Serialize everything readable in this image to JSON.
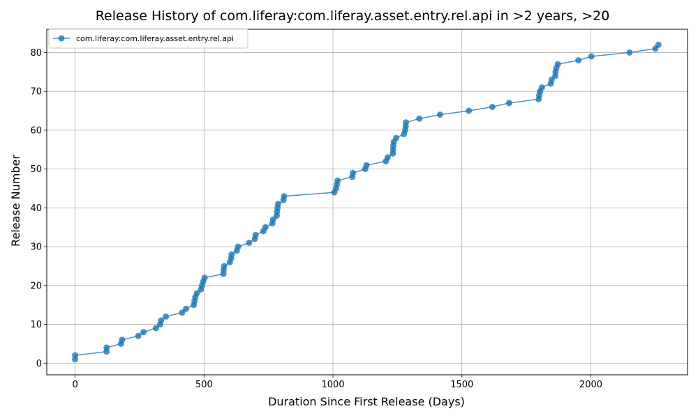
{
  "chart_data": {
    "type": "line",
    "title": "Release History of com.liferay:com.liferay.asset.entry.rel.api in >2 years, >20",
    "xlabel": "Duration Since First Release (Days)",
    "ylabel": "Release Number",
    "xlim": [
      -110,
      2375
    ],
    "ylim": [
      -3,
      86
    ],
    "xticks": [
      0,
      500,
      1000,
      1500,
      2000
    ],
    "yticks": [
      0,
      10,
      20,
      30,
      40,
      50,
      60,
      70,
      80
    ],
    "grid": true,
    "legend_position": "top-left",
    "series": [
      {
        "name": "com.liferay:com.liferay.asset.entry.rel.api",
        "color": "#1f77b4",
        "marker": "circle",
        "points": [
          [
            0,
            1
          ],
          [
            0,
            2
          ],
          [
            122,
            3
          ],
          [
            122,
            4
          ],
          [
            178,
            5
          ],
          [
            182,
            6
          ],
          [
            245,
            7
          ],
          [
            265,
            8
          ],
          [
            313,
            9
          ],
          [
            330,
            10
          ],
          [
            333,
            11
          ],
          [
            352,
            12
          ],
          [
            415,
            13
          ],
          [
            430,
            14
          ],
          [
            460,
            15
          ],
          [
            463,
            16
          ],
          [
            466,
            17
          ],
          [
            472,
            18
          ],
          [
            488,
            19
          ],
          [
            492,
            20
          ],
          [
            497,
            21
          ],
          [
            502,
            22
          ],
          [
            575,
            23
          ],
          [
            576,
            24
          ],
          [
            578,
            25
          ],
          [
            600,
            26
          ],
          [
            605,
            27
          ],
          [
            607,
            28
          ],
          [
            627,
            29
          ],
          [
            632,
            30
          ],
          [
            675,
            31
          ],
          [
            697,
            32
          ],
          [
            700,
            33
          ],
          [
            730,
            34
          ],
          [
            738,
            35
          ],
          [
            765,
            36
          ],
          [
            768,
            37
          ],
          [
            782,
            38
          ],
          [
            783,
            39
          ],
          [
            785,
            40
          ],
          [
            787,
            41
          ],
          [
            808,
            42
          ],
          [
            810,
            43
          ],
          [
            1005,
            44
          ],
          [
            1012,
            45
          ],
          [
            1015,
            46
          ],
          [
            1018,
            47
          ],
          [
            1075,
            48
          ],
          [
            1077,
            49
          ],
          [
            1125,
            50
          ],
          [
            1130,
            51
          ],
          [
            1205,
            52
          ],
          [
            1212,
            53
          ],
          [
            1232,
            54
          ],
          [
            1233,
            55
          ],
          [
            1234,
            56
          ],
          [
            1236,
            57
          ],
          [
            1245,
            58
          ],
          [
            1275,
            59
          ],
          [
            1280,
            60
          ],
          [
            1282,
            61
          ],
          [
            1283,
            62
          ],
          [
            1335,
            63
          ],
          [
            1415,
            64
          ],
          [
            1527,
            65
          ],
          [
            1618,
            66
          ],
          [
            1683,
            67
          ],
          [
            1798,
            68
          ],
          [
            1800,
            69
          ],
          [
            1803,
            70
          ],
          [
            1810,
            71
          ],
          [
            1845,
            72
          ],
          [
            1848,
            73
          ],
          [
            1862,
            74
          ],
          [
            1863,
            75
          ],
          [
            1866,
            76
          ],
          [
            1872,
            77
          ],
          [
            1952,
            78
          ],
          [
            2002,
            79
          ],
          [
            2150,
            80
          ],
          [
            2250,
            81
          ],
          [
            2262,
            82
          ]
        ]
      }
    ]
  }
}
